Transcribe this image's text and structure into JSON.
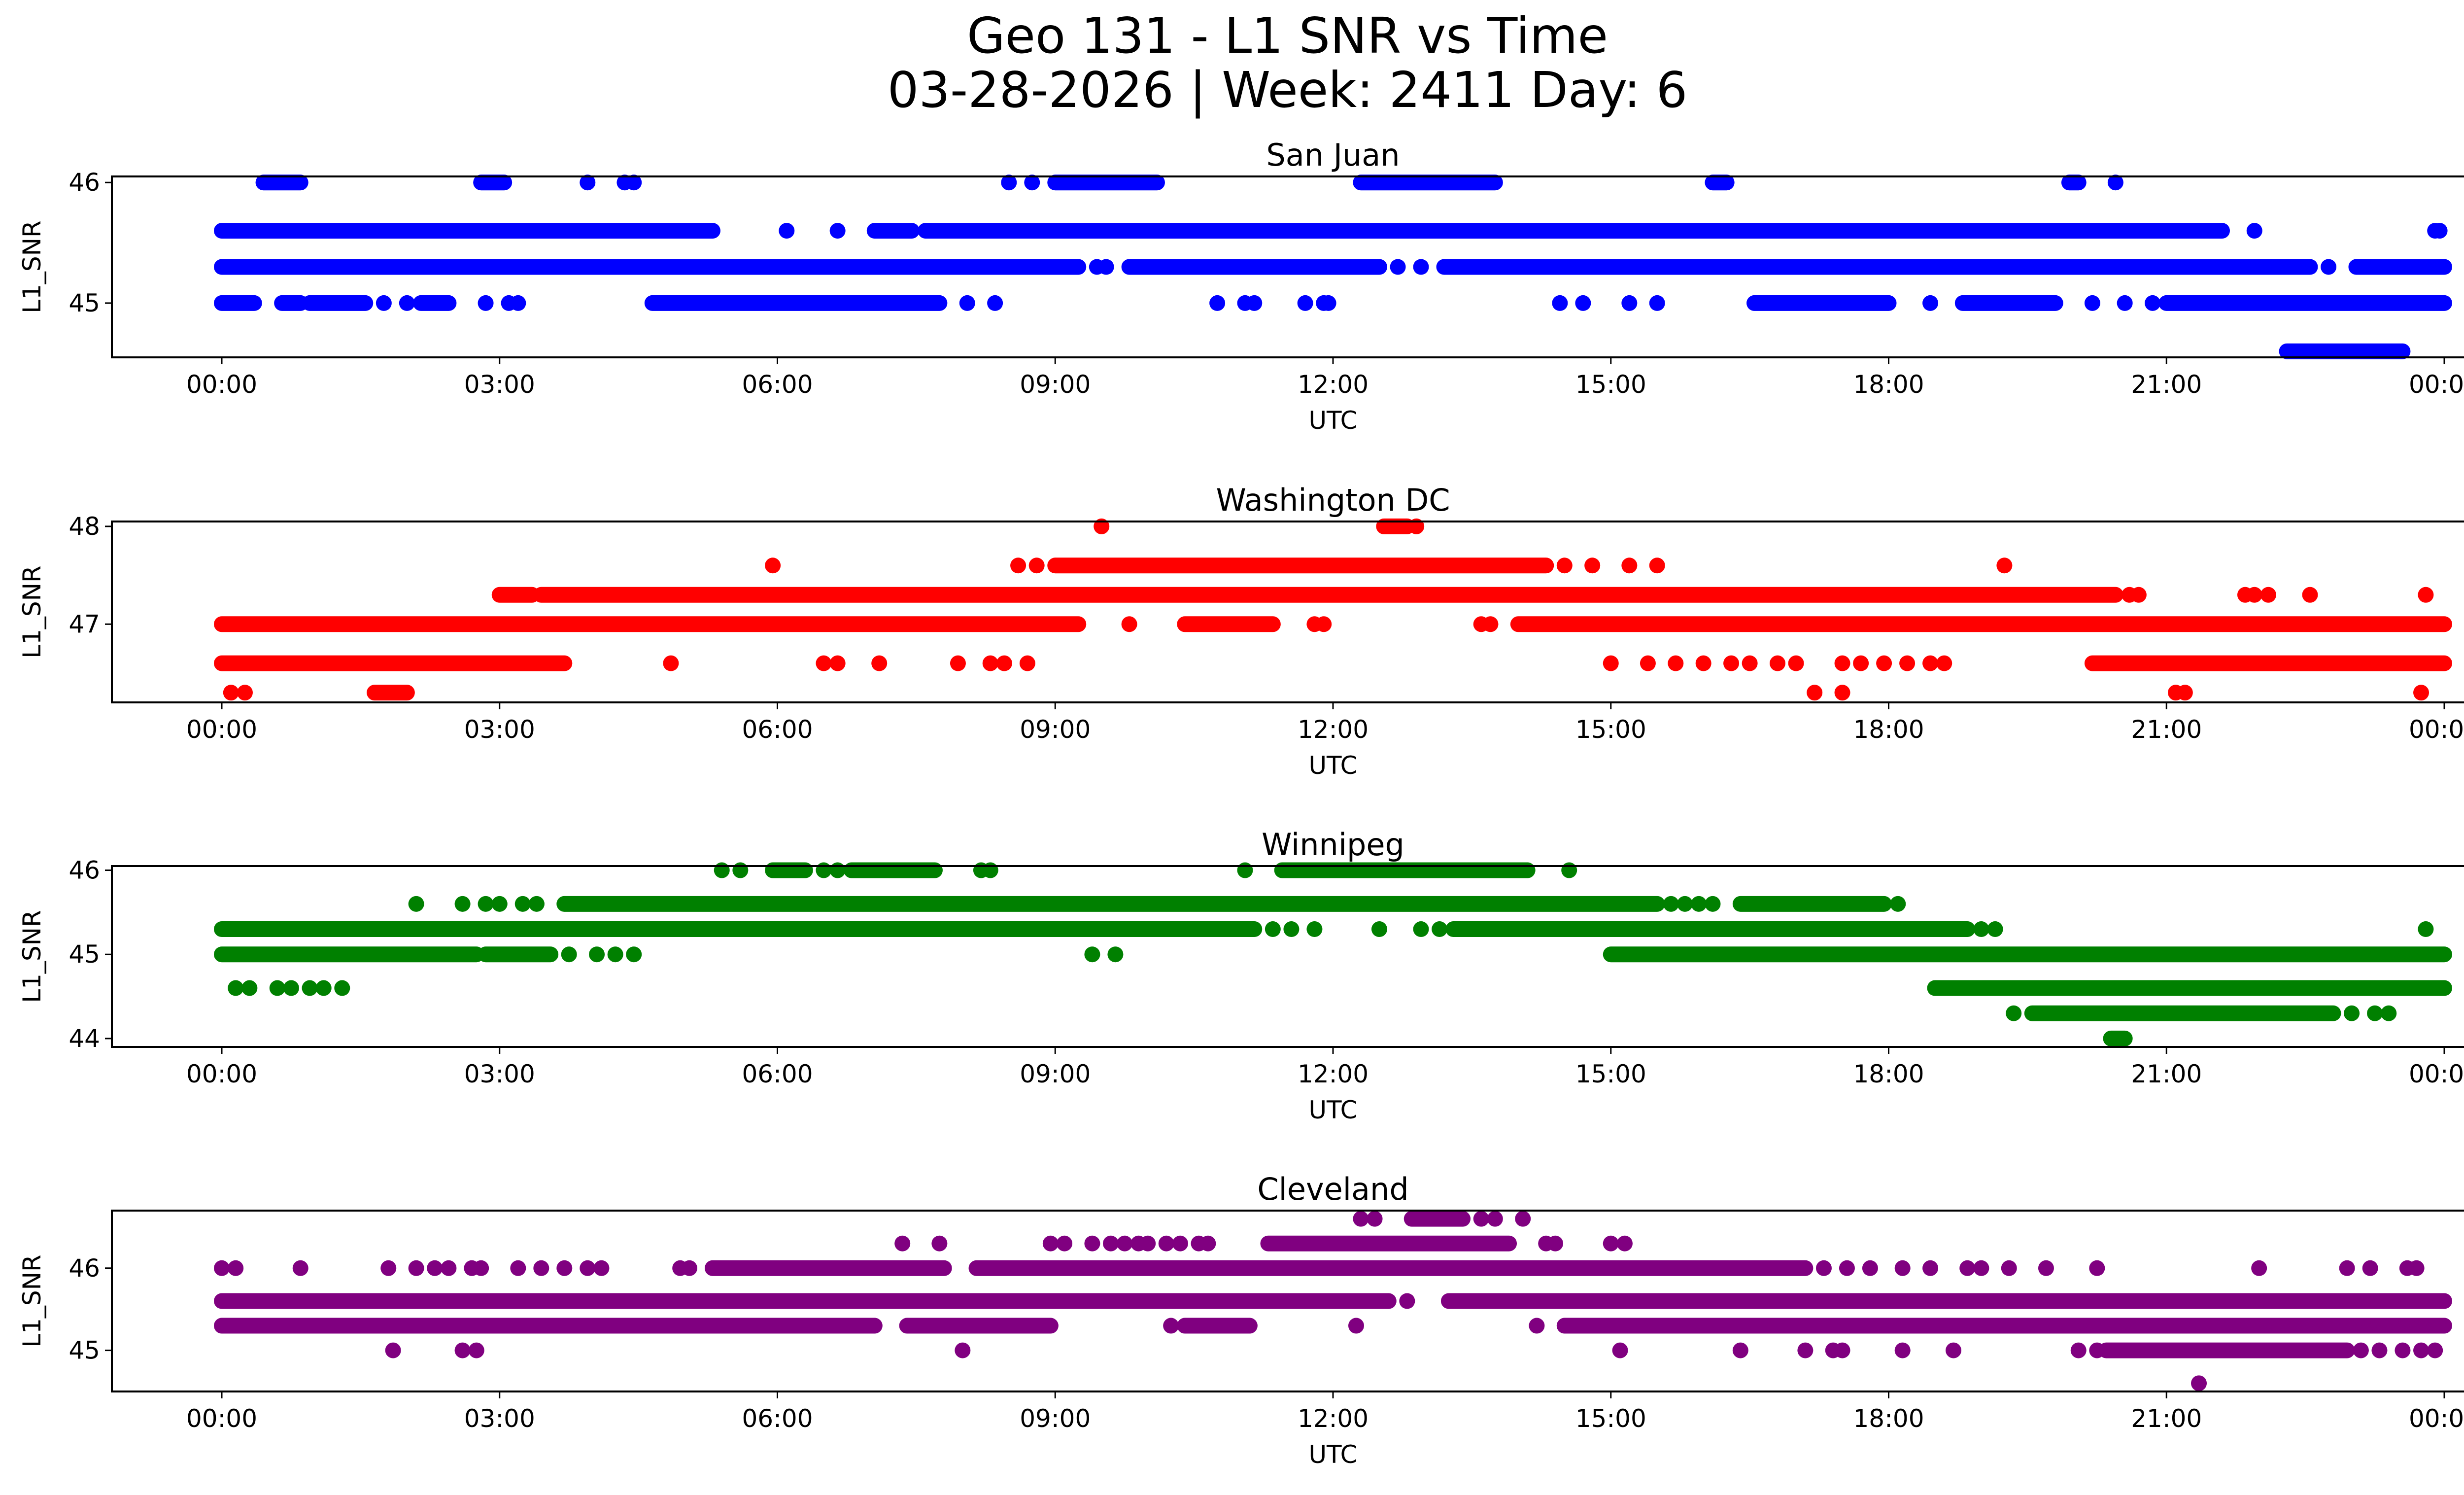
{
  "chart_data": {
    "type": "scatter",
    "title_line1": "Geo 131 - L1 SNR vs Time",
    "title_line2": "03-28-2026 | Week: 2411 Day: 6",
    "x_unit": "hours UTC since 00:00",
    "xlim": [
      -0.4,
      26.0
    ],
    "xticks": [
      0,
      3,
      6,
      9,
      12,
      15,
      18,
      21,
      24
    ],
    "xtick_labels": [
      "00:00",
      "03:00",
      "06:00",
      "09:00",
      "12:00",
      "15:00",
      "18:00",
      "21:00",
      "00:00"
    ],
    "xlabel": "UTC",
    "ylabel": "L1_SNR",
    "grid": false,
    "legend": "none",
    "panels": [
      {
        "name": "san-juan",
        "title": "San Juan",
        "color": "#0000ff",
        "ylim": [
          44.55,
          46.05
        ],
        "yticks": [
          45,
          46
        ],
        "ytick_labels": [
          "45",
          "46"
        ],
        "series": [
          {
            "snr": 46.0,
            "ranges": [
              [
                0.45,
                0.85
              ],
              [
                2.8,
                3.05
              ],
              [
                9.0,
                10.1
              ],
              [
                12.3,
                13.75
              ],
              [
                16.1,
                16.25
              ],
              [
                19.95,
                20.05
              ]
            ],
            "points": [
              3.95,
              4.35,
              4.45,
              8.5,
              8.75,
              20.45
            ]
          },
          {
            "snr": 45.6,
            "ranges": [
              [
                0.0,
                5.3
              ],
              [
                7.05,
                7.45
              ],
              [
                7.6,
                21.6
              ]
            ],
            "points": [
              6.1,
              6.65,
              21.95,
              23.9,
              23.95
            ]
          },
          {
            "snr": 45.3,
            "ranges": [
              [
                0.0,
                9.25
              ],
              [
                9.8,
                12.5
              ],
              [
                13.2,
                22.55
              ],
              [
                23.05,
                24.0
              ]
            ],
            "points": [
              9.45,
              9.55,
              12.7,
              12.95,
              22.75
            ]
          },
          {
            "snr": 45.0,
            "ranges": [
              [
                0.0,
                0.35
              ],
              [
                0.65,
                0.85
              ],
              [
                0.95,
                1.55
              ],
              [
                2.15,
                2.45
              ],
              [
                4.65,
                7.75
              ],
              [
                16.55,
                18.0
              ],
              [
                18.8,
                19.8
              ],
              [
                21.0,
                24.0
              ]
            ],
            "points": [
              1.75,
              2.0,
              2.85,
              3.1,
              3.2,
              8.05,
              8.35,
              10.75,
              11.05,
              11.15,
              11.7,
              11.9,
              11.95,
              14.45,
              14.7,
              15.2,
              15.5,
              18.45,
              20.2,
              20.55,
              20.85
            ]
          },
          {
            "snr": 44.6,
            "ranges": [
              [
                22.3,
                23.55
              ]
            ],
            "points": []
          }
        ]
      },
      {
        "name": "washington-dc",
        "title": "Washington DC",
        "color": "#ff0000",
        "ylim": [
          46.2,
          48.05
        ],
        "yticks": [
          47,
          48
        ],
        "ytick_labels": [
          "47",
          "48"
        ],
        "series": [
          {
            "snr": 48.0,
            "ranges": [
              [
                12.55,
                12.8
              ]
            ],
            "points": [
              9.5,
              12.9
            ]
          },
          {
            "snr": 47.6,
            "ranges": [
              [
                9.0,
                14.3
              ]
            ],
            "points": [
              5.95,
              8.6,
              8.8,
              14.5,
              14.8,
              15.2,
              15.5,
              19.25
            ]
          },
          {
            "snr": 47.3,
            "ranges": [
              [
                3.0,
                3.35
              ],
              [
                3.45,
                20.45
              ]
            ],
            "points": [
              20.6,
              20.7,
              21.85,
              21.95,
              22.1,
              22.55,
              23.8
            ]
          },
          {
            "snr": 47.0,
            "ranges": [
              [
                0.0,
                9.25
              ],
              [
                10.4,
                11.35
              ],
              [
                14.0,
                24.0
              ]
            ],
            "points": [
              9.8,
              11.8,
              11.9,
              13.6,
              13.7
            ]
          },
          {
            "snr": 46.6,
            "ranges": [
              [
                0.0,
                3.7
              ],
              [
                20.2,
                24.0
              ]
            ],
            "points": [
              4.85,
              6.5,
              6.65,
              7.1,
              7.95,
              8.3,
              8.45,
              8.7,
              15.0,
              15.4,
              15.7,
              16.0,
              16.3,
              16.5,
              16.8,
              17.0,
              17.5,
              17.7,
              17.95,
              18.2,
              18.45,
              18.6
            ]
          },
          {
            "snr": 46.3,
            "ranges": [
              [
                1.65,
                2.0
              ]
            ],
            "points": [
              0.1,
              0.25,
              17.2,
              17.5,
              21.1,
              21.2,
              23.75
            ]
          }
        ]
      },
      {
        "name": "winnipeg",
        "title": "Winnipeg",
        "color": "#008000",
        "ylim": [
          43.9,
          46.05
        ],
        "yticks": [
          44,
          45,
          46
        ],
        "ytick_labels": [
          "44",
          "45",
          "46"
        ],
        "series": [
          {
            "snr": 46.0,
            "ranges": [
              [
                5.95,
                6.3
              ],
              [
                6.8,
                7.7
              ],
              [
                11.45,
                14.1
              ]
            ],
            "points": [
              5.4,
              5.6,
              6.5,
              6.65,
              8.2,
              8.3,
              11.05,
              14.55
            ]
          },
          {
            "snr": 45.6,
            "ranges": [
              [
                3.7,
                15.5
              ],
              [
                16.4,
                17.95
              ]
            ],
            "points": [
              2.1,
              2.6,
              2.85,
              3.0,
              3.25,
              3.4,
              15.65,
              15.8,
              15.95,
              16.1,
              18.1
            ]
          },
          {
            "snr": 45.3,
            "ranges": [
              [
                0.0,
                11.15
              ],
              [
                13.3,
                18.85
              ]
            ],
            "points": [
              11.35,
              11.55,
              11.8,
              12.5,
              12.95,
              13.15,
              19.0,
              19.15,
              23.8
            ]
          },
          {
            "snr": 45.0,
            "ranges": [
              [
                0.0,
                2.75
              ],
              [
                2.85,
                3.55
              ],
              [
                15.0,
                24.0
              ]
            ],
            "points": [
              3.75,
              4.05,
              4.25,
              4.45,
              9.4,
              9.65
            ]
          },
          {
            "snr": 44.6,
            "ranges": [
              [
                18.5,
                24.0
              ]
            ],
            "points": [
              0.15,
              0.3,
              0.6,
              0.75,
              0.95,
              1.1,
              1.3
            ]
          },
          {
            "snr": 44.3,
            "ranges": [
              [
                19.55,
                22.8
              ]
            ],
            "points": [
              19.35,
              23.0,
              23.25,
              23.4
            ]
          },
          {
            "snr": 44.0,
            "ranges": [
              [
                20.4,
                20.55
              ]
            ],
            "points": []
          }
        ]
      },
      {
        "name": "cleveland",
        "title": "Cleveland",
        "color": "#800080",
        "ylim": [
          44.5,
          46.7
        ],
        "yticks": [
          45,
          46
        ],
        "ytick_labels": [
          "45",
          "46"
        ],
        "series": [
          {
            "snr": 46.6,
            "ranges": [
              [
                12.85,
                13.4
              ]
            ],
            "points": [
              12.3,
              12.45,
              13.6,
              13.75,
              14.05
            ]
          },
          {
            "snr": 46.3,
            "ranges": [
              [
                11.3,
                13.9
              ]
            ],
            "points": [
              7.35,
              7.75,
              8.95,
              9.1,
              9.4,
              9.6,
              9.75,
              9.9,
              10.0,
              10.2,
              10.35,
              10.55,
              10.65,
              14.3,
              14.4,
              15.0,
              15.15
            ]
          },
          {
            "snr": 46.0,
            "ranges": [
              [
                5.3,
                7.8
              ],
              [
                8.15,
                17.1
              ]
            ],
            "points": [
              0.0,
              0.15,
              0.85,
              1.8,
              2.1,
              2.3,
              2.45,
              2.7,
              2.8,
              3.2,
              3.45,
              3.7,
              3.95,
              4.1,
              4.95,
              5.05,
              17.3,
              17.55,
              17.8,
              18.15,
              18.45,
              18.85,
              19.0,
              19.3,
              19.7,
              20.25,
              22.0,
              22.95,
              23.2,
              23.6,
              23.7
            ]
          },
          {
            "snr": 45.6,
            "ranges": [
              [
                0.0,
                12.6
              ],
              [
                13.25,
                24.0
              ]
            ],
            "points": [
              12.8
            ]
          },
          {
            "snr": 45.3,
            "ranges": [
              [
                0.0,
                7.05
              ],
              [
                7.4,
                8.95
              ],
              [
                10.4,
                11.1
              ],
              [
                14.5,
                24.0
              ]
            ],
            "points": [
              10.25,
              12.25,
              14.2
            ]
          },
          {
            "snr": 45.0,
            "ranges": [
              [
                20.35,
                22.95
              ]
            ],
            "points": [
              1.85,
              2.6,
              2.75,
              8.0,
              15.1,
              16.4,
              17.1,
              17.4,
              17.5,
              18.15,
              18.7,
              20.05,
              20.25,
              23.1,
              23.3,
              23.55,
              23.75,
              23.9
            ]
          },
          {
            "snr": 44.6,
            "ranges": [],
            "points": [
              21.35
            ]
          }
        ]
      }
    ]
  }
}
